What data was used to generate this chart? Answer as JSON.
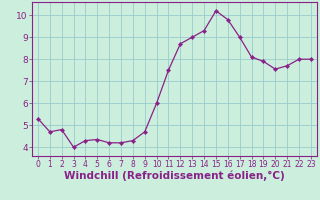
{
  "x": [
    0,
    1,
    2,
    3,
    4,
    5,
    6,
    7,
    8,
    9,
    10,
    11,
    12,
    13,
    14,
    15,
    16,
    17,
    18,
    19,
    20,
    21,
    22,
    23
  ],
  "y": [
    5.3,
    4.7,
    4.8,
    4.0,
    4.3,
    4.35,
    4.2,
    4.2,
    4.3,
    4.7,
    6.0,
    7.5,
    8.7,
    9.0,
    9.3,
    10.2,
    9.8,
    9.0,
    8.1,
    7.9,
    7.55,
    7.7,
    8.0,
    8.0
  ],
  "line_color": "#882288",
  "marker": "D",
  "marker_size": 2.2,
  "bg_color": "#bbeebb",
  "plot_bg": "#cceedd",
  "grid_color": "#99cccc",
  "xlabel": "Windchill (Refroidissement éolien,°C)",
  "xlabel_fontsize": 7.5,
  "ylabel_ticks": [
    4,
    5,
    6,
    7,
    8,
    9,
    10
  ],
  "xlim": [
    -0.5,
    23.5
  ],
  "ylim": [
    3.6,
    10.6
  ],
  "xtick_fontsize": 5.5,
  "ytick_fontsize": 6.5,
  "tick_color": "#882288",
  "label_color": "#882288",
  "spine_color": "#882288"
}
